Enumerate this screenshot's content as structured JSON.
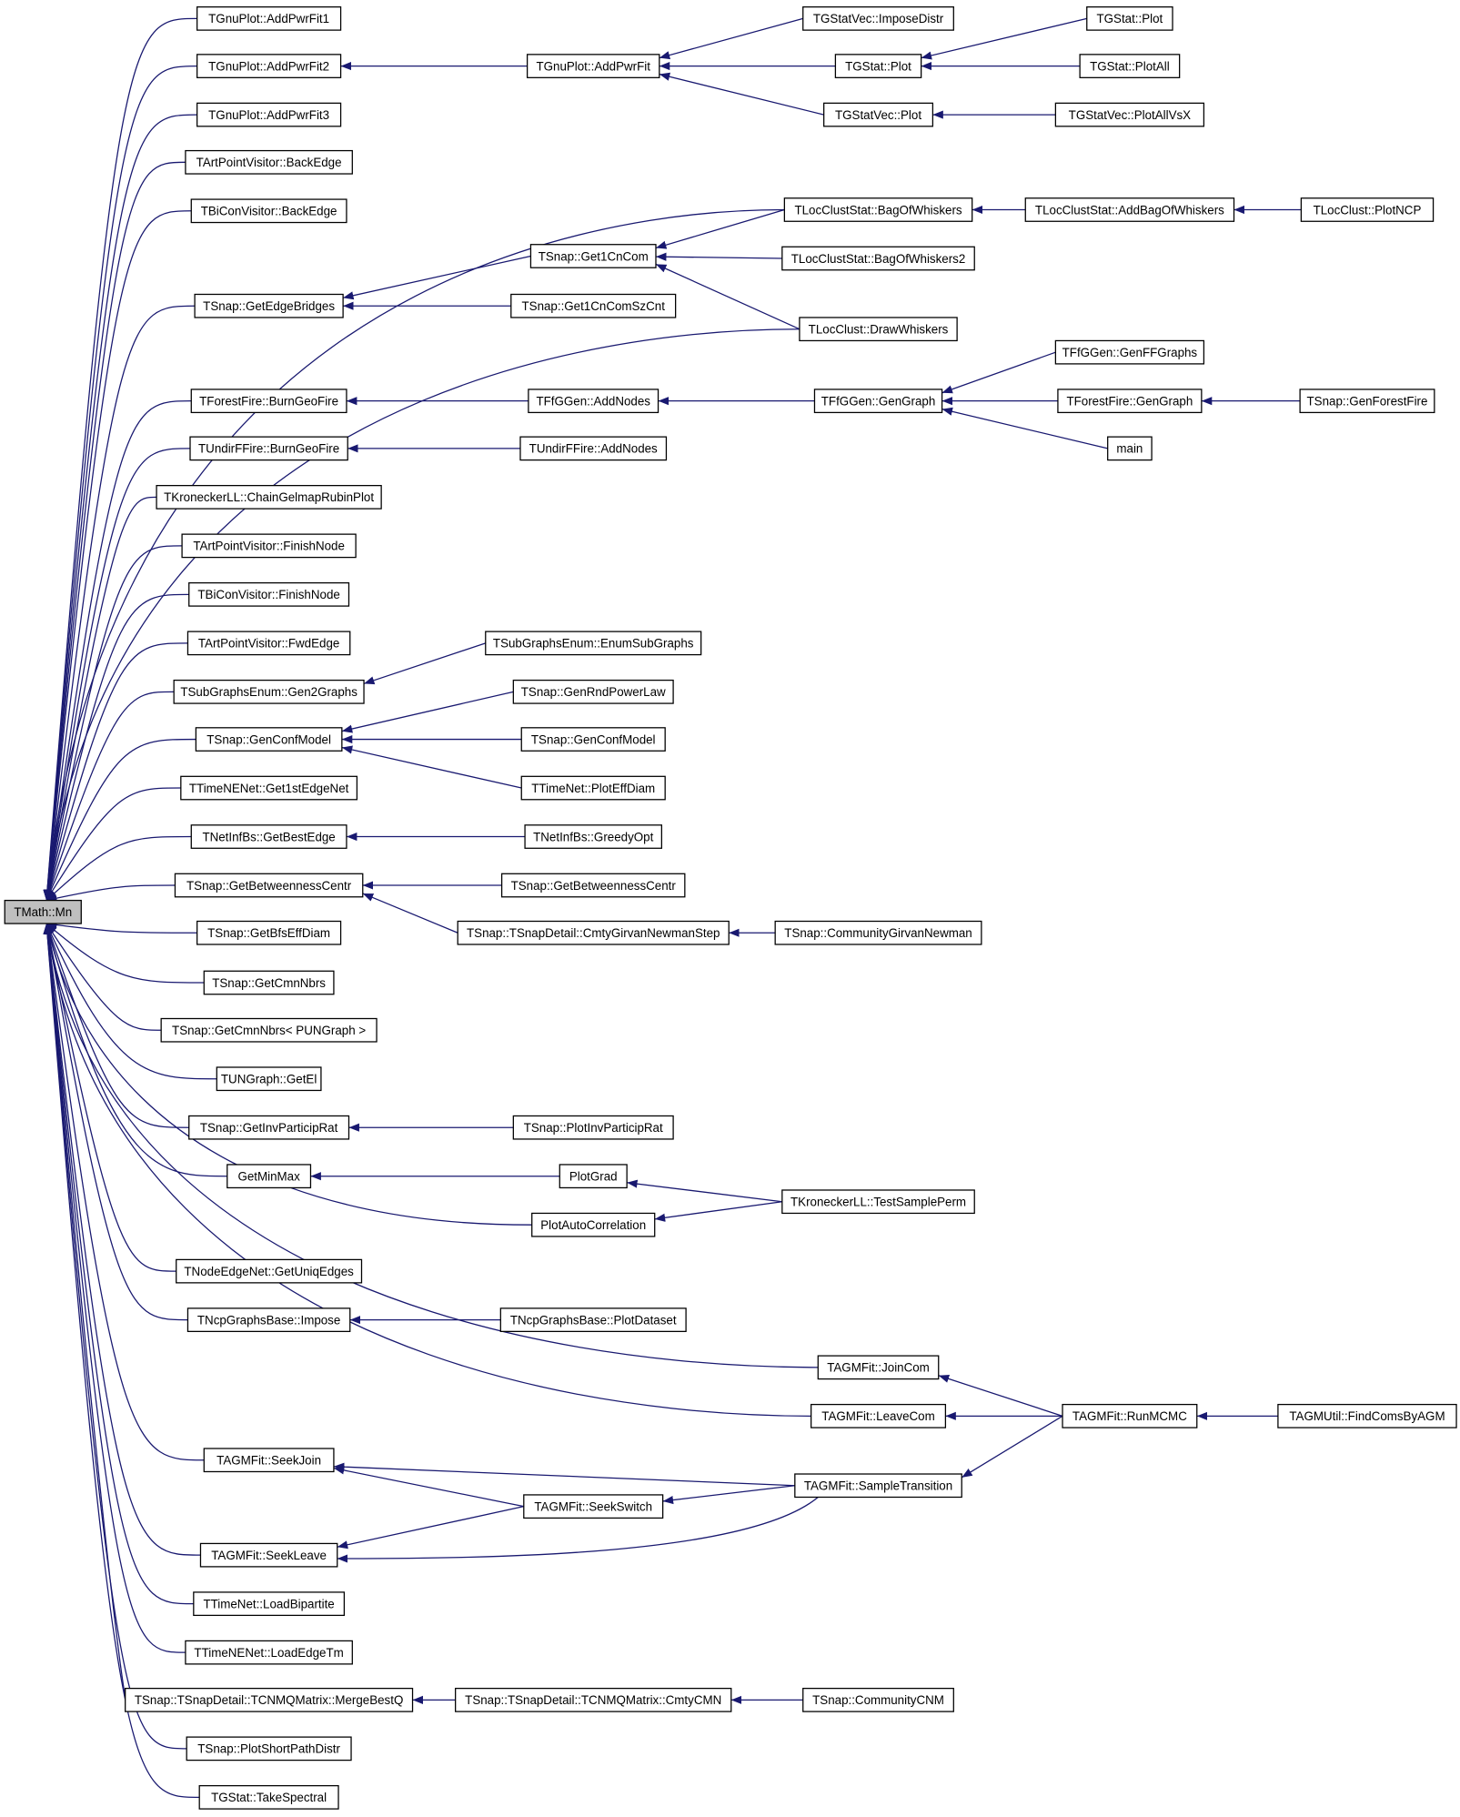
{
  "nodes": [
    "TMath::Mn",
    "TGnuPlot::AddPwrFit1",
    "TGnuPlot::AddPwrFit2",
    "TGnuPlot::AddPwrFit3",
    "TArtPointVisitor::BackEdge",
    "TBiConVisitor::BackEdge",
    "TSnap::GetEdgeBridges",
    "TForestFire::BurnGeoFire",
    "TUndirFFire::BurnGeoFire",
    "TKroneckerLL::ChainGelmapRubinPlot",
    "TArtPointVisitor::FinishNode",
    "TBiConVisitor::FinishNode",
    "TArtPointVisitor::FwdEdge",
    "TSubGraphsEnum::Gen2Graphs",
    "TSnap::GenConfModel",
    "TTimeNENet::Get1stEdgeNet",
    "TNetInfBs::GetBestEdge",
    "TSnap::GetBetweennessCentr",
    "TSnap::GetBfsEffDiam",
    "TSnap::GetCmnNbrs",
    "TSnap::GetCmnNbrs< PUNGraph >",
    "TUNGraph::GetEl",
    "TSnap::GetInvParticipRat",
    "GetMinMax",
    "TNodeEdgeNet::GetUniqEdges",
    "TNcpGraphsBase::Impose",
    "TAGMFit::SeekJoin",
    "TAGMFit::SeekLeave",
    "TTimeNet::LoadBipartite",
    "TTimeNENet::LoadEdgeTm",
    "TSnap::TSnapDetail::TCNMQMatrix::MergeBestQ",
    "TSnap::PlotShortPathDistr",
    "TGStat::TakeSpectral",
    "TGnuPlot::AddPwrFit",
    "TSnap::Get1CnCom",
    "TSnap::Get1CnComSzCnt",
    "TFfGGen::AddNodes",
    "TUndirFFire::AddNodes",
    "TSubGraphsEnum::EnumSubGraphs",
    "TSnap::GenRndPowerLaw",
    "TSnap::GenConfModel",
    "TTimeNet::PlotEffDiam",
    "TNetInfBs::GreedyOpt",
    "TSnap::GetBetweennessCentr",
    "TSnap::TSnapDetail::CmtyGirvanNewmanStep",
    "TSnap::PlotInvParticipRat",
    "PlotGrad",
    "PlotAutoCorrelation",
    "TNcpGraphsBase::PlotDataset",
    "TAGMFit::SeekSwitch",
    "TSnap::TSnapDetail::TCNMQMatrix::CmtyCMN",
    "TGStatVec::ImposeDistr",
    "TGStat::Plot",
    "TGStatVec::Plot",
    "TLocClustStat::BagOfWhiskers",
    "TLocClustStat::BagOfWhiskers2",
    "TLocClust::DrawWhiskers",
    "TFfGGen::GenGraph",
    "TSnap::CommunityGirvanNewman",
    "TKroneckerLL::TestSamplePerm",
    "TAGMFit::JoinCom",
    "TAGMFit::LeaveCom",
    "TAGMFit::SampleTransition",
    "TSnap::CommunityCNM",
    "TGStat::Plot",
    "TGStat::PlotAll",
    "TGStatVec::PlotAllVsX",
    "TLocClustStat::AddBagOfWhiskers",
    "TFfGGen::GenFFGraphs",
    "TForestFire::GenGraph",
    "main",
    "TAGMFit::RunMCMC",
    "TLocClust::PlotNCP",
    "TSnap::GenForestFire",
    "TAGMUtil::FindComsByAGM"
  ]
}
